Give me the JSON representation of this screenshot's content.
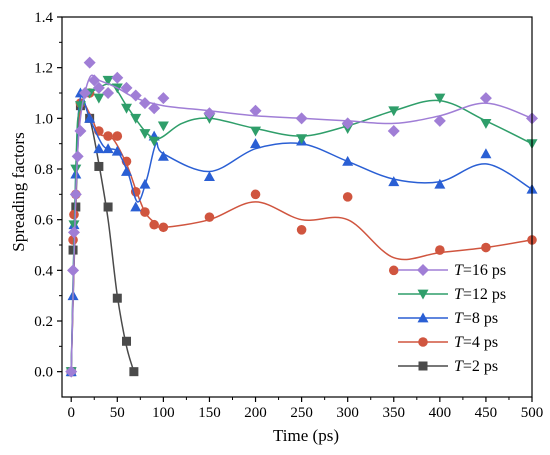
{
  "chart_data": {
    "type": "scatter",
    "xlabel": "Time (ps)",
    "ylabel": "Spreading factors",
    "xlim": [
      -10,
      500
    ],
    "ylim": [
      -0.1,
      1.4
    ],
    "xticks": [
      0,
      50,
      100,
      150,
      200,
      250,
      300,
      350,
      400,
      450,
      500
    ],
    "yticks": [
      0.0,
      0.2,
      0.4,
      0.6,
      0.8,
      1.0,
      1.2,
      1.4
    ],
    "legend_position": "bottom-right",
    "series": [
      {
        "name_prefix": "T",
        "name_suffix": "=16 ps",
        "color": "#a07ed6",
        "marker": "diamond",
        "points": [
          [
            0,
            0
          ],
          [
            2,
            0.4
          ],
          [
            3,
            0.55
          ],
          [
            5,
            0.7
          ],
          [
            7,
            0.85
          ],
          [
            10,
            0.95
          ],
          [
            15,
            1.1
          ],
          [
            20,
            1.22
          ],
          [
            25,
            1.15
          ],
          [
            30,
            1.12
          ],
          [
            40,
            1.1
          ],
          [
            50,
            1.16
          ],
          [
            60,
            1.12
          ],
          [
            70,
            1.09
          ],
          [
            80,
            1.06
          ],
          [
            90,
            1.04
          ],
          [
            100,
            1.08
          ],
          [
            150,
            1.02
          ],
          [
            200,
            1.03
          ],
          [
            250,
            1.0
          ],
          [
            300,
            0.98
          ],
          [
            350,
            0.95
          ],
          [
            400,
            0.99
          ],
          [
            450,
            1.08
          ],
          [
            500,
            1.0
          ]
        ],
        "curve": [
          [
            0,
            0
          ],
          [
            5,
            0.7
          ],
          [
            10,
            1.0
          ],
          [
            20,
            1.16
          ],
          [
            30,
            1.15
          ],
          [
            50,
            1.12
          ],
          [
            70,
            1.08
          ],
          [
            100,
            1.05
          ],
          [
            150,
            1.03
          ],
          [
            200,
            1.01
          ],
          [
            250,
            1.0
          ],
          [
            300,
            0.99
          ],
          [
            350,
            0.98
          ],
          [
            400,
            1.01
          ],
          [
            450,
            1.06
          ],
          [
            500,
            1.0
          ]
        ]
      },
      {
        "name_prefix": "T",
        "name_suffix": "=12 ps",
        "color": "#2f9e6a",
        "marker": "triangle-down",
        "points": [
          [
            0,
            0
          ],
          [
            3,
            0.58
          ],
          [
            5,
            0.8
          ],
          [
            10,
            1.05
          ],
          [
            20,
            1.1
          ],
          [
            30,
            1.08
          ],
          [
            40,
            1.15
          ],
          [
            50,
            1.12
          ],
          [
            60,
            1.04
          ],
          [
            70,
            1.0
          ],
          [
            80,
            0.94
          ],
          [
            90,
            0.91
          ],
          [
            100,
            0.97
          ],
          [
            150,
            1.0
          ],
          [
            200,
            0.95
          ],
          [
            250,
            0.92
          ],
          [
            300,
            0.96
          ],
          [
            350,
            1.03
          ],
          [
            400,
            1.08
          ],
          [
            450,
            0.98
          ],
          [
            500,
            0.9
          ]
        ],
        "curve": [
          [
            0,
            0
          ],
          [
            5,
            0.8
          ],
          [
            10,
            1.05
          ],
          [
            30,
            1.12
          ],
          [
            45,
            1.13
          ],
          [
            60,
            1.05
          ],
          [
            80,
            0.95
          ],
          [
            95,
            0.92
          ],
          [
            120,
            0.98
          ],
          [
            150,
            1.0
          ],
          [
            200,
            0.96
          ],
          [
            250,
            0.93
          ],
          [
            300,
            0.97
          ],
          [
            350,
            1.03
          ],
          [
            400,
            1.07
          ],
          [
            450,
            0.99
          ],
          [
            500,
            0.9
          ]
        ]
      },
      {
        "name_prefix": "T",
        "name_suffix": "=8 ps",
        "color": "#2a5fd4",
        "marker": "triangle-up",
        "points": [
          [
            0,
            0
          ],
          [
            2,
            0.3
          ],
          [
            3,
            0.58
          ],
          [
            5,
            0.78
          ],
          [
            10,
            1.1
          ],
          [
            20,
            1.0
          ],
          [
            30,
            0.88
          ],
          [
            40,
            0.88
          ],
          [
            50,
            0.87
          ],
          [
            60,
            0.79
          ],
          [
            70,
            0.65
          ],
          [
            80,
            0.74
          ],
          [
            90,
            0.93
          ],
          [
            100,
            0.85
          ],
          [
            150,
            0.77
          ],
          [
            200,
            0.9
          ],
          [
            250,
            0.91
          ],
          [
            300,
            0.83
          ],
          [
            350,
            0.75
          ],
          [
            400,
            0.74
          ],
          [
            450,
            0.86
          ],
          [
            500,
            0.72
          ]
        ],
        "curve": [
          [
            0,
            0
          ],
          [
            5,
            0.78
          ],
          [
            10,
            1.08
          ],
          [
            20,
            1.0
          ],
          [
            35,
            0.89
          ],
          [
            50,
            0.87
          ],
          [
            62,
            0.78
          ],
          [
            72,
            0.67
          ],
          [
            82,
            0.76
          ],
          [
            92,
            0.9
          ],
          [
            100,
            0.86
          ],
          [
            150,
            0.79
          ],
          [
            200,
            0.88
          ],
          [
            250,
            0.9
          ],
          [
            300,
            0.83
          ],
          [
            350,
            0.76
          ],
          [
            400,
            0.75
          ],
          [
            450,
            0.82
          ],
          [
            500,
            0.72
          ]
        ]
      },
      {
        "name_prefix": "T",
        "name_suffix": "=4 ps",
        "color": "#d0553f",
        "marker": "circle",
        "points": [
          [
            0,
            0
          ],
          [
            2,
            0.52
          ],
          [
            3,
            0.62
          ],
          [
            5,
            0.7
          ],
          [
            10,
            1.06
          ],
          [
            20,
            1.1
          ],
          [
            30,
            0.95
          ],
          [
            40,
            0.93
          ],
          [
            50,
            0.93
          ],
          [
            60,
            0.83
          ],
          [
            70,
            0.71
          ],
          [
            80,
            0.63
          ],
          [
            90,
            0.58
          ],
          [
            100,
            0.57
          ],
          [
            150,
            0.61
          ],
          [
            200,
            0.7
          ],
          [
            250,
            0.56
          ],
          [
            300,
            0.69
          ],
          [
            350,
            0.4
          ],
          [
            400,
            0.48
          ],
          [
            450,
            0.49
          ],
          [
            500,
            0.52
          ]
        ],
        "curve": [
          [
            0,
            0
          ],
          [
            5,
            0.7
          ],
          [
            10,
            1.04
          ],
          [
            20,
            1.02
          ],
          [
            30,
            0.94
          ],
          [
            45,
            0.92
          ],
          [
            60,
            0.82
          ],
          [
            70,
            0.72
          ],
          [
            80,
            0.63
          ],
          [
            90,
            0.59
          ],
          [
            100,
            0.57
          ],
          [
            150,
            0.6
          ],
          [
            200,
            0.67
          ],
          [
            250,
            0.6
          ],
          [
            300,
            0.6
          ],
          [
            350,
            0.45
          ],
          [
            400,
            0.47
          ],
          [
            450,
            0.49
          ],
          [
            500,
            0.52
          ]
        ]
      },
      {
        "name_prefix": "T",
        "name_suffix": "=2 ps",
        "color": "#4a4a4a",
        "marker": "square",
        "points": [
          [
            0,
            0
          ],
          [
            2,
            0.48
          ],
          [
            5,
            0.65
          ],
          [
            10,
            1.05
          ],
          [
            20,
            1.0
          ],
          [
            30,
            0.81
          ],
          [
            40,
            0.65
          ],
          [
            50,
            0.29
          ],
          [
            60,
            0.12
          ],
          [
            68,
            0.0
          ]
        ],
        "curve": [
          [
            0,
            0
          ],
          [
            5,
            0.65
          ],
          [
            10,
            1.04
          ],
          [
            20,
            1.0
          ],
          [
            30,
            0.82
          ],
          [
            40,
            0.6
          ],
          [
            50,
            0.3
          ],
          [
            60,
            0.1
          ],
          [
            68,
            0.0
          ]
        ]
      }
    ]
  }
}
